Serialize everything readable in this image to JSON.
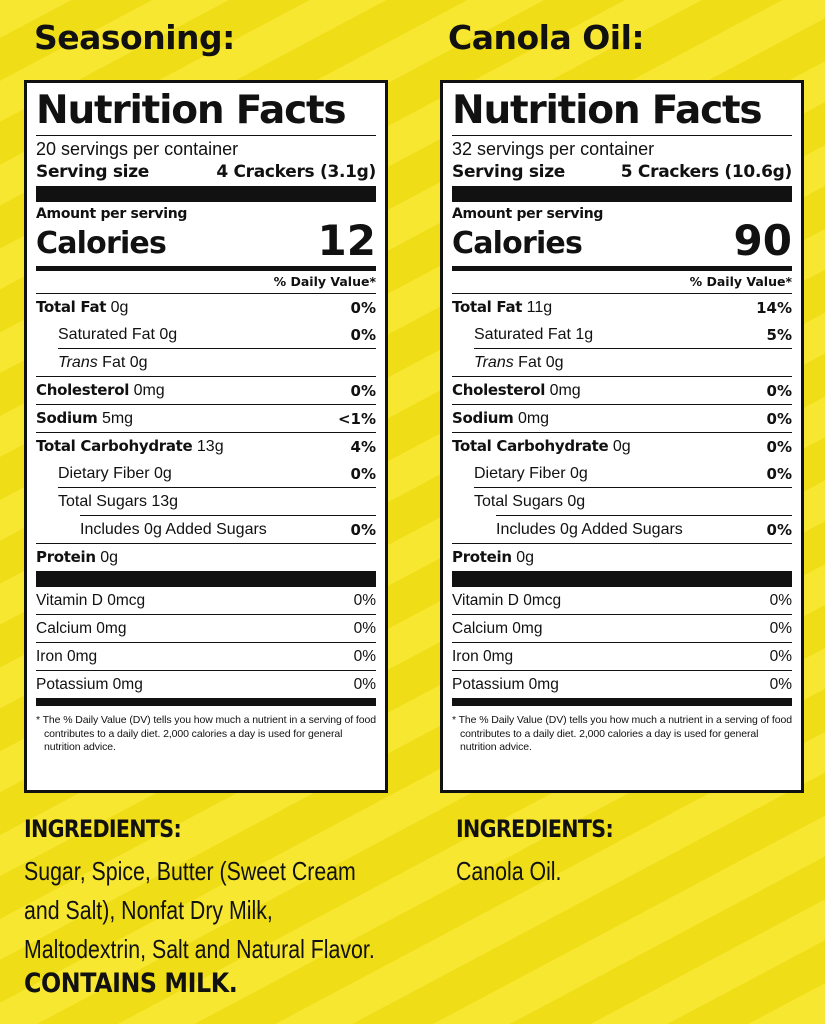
{
  "colors": {
    "background": "#f7e418",
    "panel": "#ffffff",
    "ink": "#111111"
  },
  "labels": [
    {
      "heading": "Seasoning:",
      "nutrition_title": "Nutrition Facts",
      "servings_per_container": "20 servings per container",
      "serving_size_label": "Serving size",
      "serving_size_value": "4 Crackers (3.1g)",
      "amount_per_serving": "Amount per serving",
      "calories_label": "Calories",
      "calories_value": "12",
      "dv_header": "% Daily Value*",
      "total_fat": {
        "label": "Total Fat",
        "amount": "0g",
        "dv": "0%"
      },
      "saturated_fat": {
        "label": "Saturated Fat 0g",
        "dv": "0%"
      },
      "trans_fat": {
        "label_italic": "Trans",
        "label_rest": " Fat 0g"
      },
      "cholesterol": {
        "label": "Cholesterol",
        "amount": "0mg",
        "dv": "0%"
      },
      "sodium": {
        "label": "Sodium",
        "amount": "5mg",
        "dv": "<1%"
      },
      "total_carbohydrate": {
        "label": "Total Carbohydrate",
        "amount": "13g",
        "dv": "4%"
      },
      "dietary_fiber": {
        "label": "Dietary Fiber 0g",
        "dv": "0%"
      },
      "total_sugars": {
        "label": "Total Sugars 13g"
      },
      "added_sugars": {
        "label": "Includes 0g Added Sugars",
        "dv": "0%"
      },
      "protein": {
        "label": "Protein",
        "amount": "0g"
      },
      "vitamin_d": {
        "label": "Vitamin D 0mcg",
        "dv": "0%"
      },
      "calcium": {
        "label": "Calcium 0mg",
        "dv": "0%"
      },
      "iron": {
        "label": "Iron 0mg",
        "dv": "0%"
      },
      "potassium": {
        "label": "Potassium 0mg",
        "dv": "0%"
      },
      "footnote": "* The % Daily Value (DV) tells you how much a nutrient in a serving of food contributes to a daily diet. 2,000 calories a day is used for general nutrition advice.",
      "ingredients_title": "INGREDIENTS:",
      "ingredients_text": "Sugar, Spice, Butter (Sweet Cream and Salt), Nonfat Dry Milk, Maltodextrin, Salt and Natural Flavor.",
      "contains": "CONTAINS MILK."
    },
    {
      "heading": "Canola Oil:",
      "nutrition_title": "Nutrition Facts",
      "servings_per_container": "32 servings per container",
      "serving_size_label": "Serving size",
      "serving_size_value": "5 Crackers (10.6g)",
      "amount_per_serving": "Amount per serving",
      "calories_label": "Calories",
      "calories_value": "90",
      "dv_header": "% Daily Value*",
      "total_fat": {
        "label": "Total Fat",
        "amount": "11g",
        "dv": "14%"
      },
      "saturated_fat": {
        "label": "Saturated Fat 1g",
        "dv": "5%"
      },
      "trans_fat": {
        "label_italic": "Trans",
        "label_rest": " Fat 0g"
      },
      "cholesterol": {
        "label": "Cholesterol",
        "amount": "0mg",
        "dv": "0%"
      },
      "sodium": {
        "label": "Sodium",
        "amount": "0mg",
        "dv": "0%"
      },
      "total_carbohydrate": {
        "label": "Total Carbohydrate",
        "amount": "0g",
        "dv": "0%"
      },
      "dietary_fiber": {
        "label": "Dietary Fiber 0g",
        "dv": "0%"
      },
      "total_sugars": {
        "label": "Total Sugars 0g"
      },
      "added_sugars": {
        "label": "Includes 0g Added Sugars",
        "dv": "0%"
      },
      "protein": {
        "label": "Protein",
        "amount": "0g"
      },
      "vitamin_d": {
        "label": "Vitamin D 0mcg",
        "dv": "0%"
      },
      "calcium": {
        "label": "Calcium 0mg",
        "dv": "0%"
      },
      "iron": {
        "label": "Iron 0mg",
        "dv": "0%"
      },
      "potassium": {
        "label": "Potassium 0mg",
        "dv": "0%"
      },
      "footnote": "* The % Daily Value (DV) tells you how much a nutrient in a serving of food contributes to a daily diet. 2,000 calories a day is used for general nutrition advice.",
      "ingredients_title": "INGREDIENTS:",
      "ingredients_text": "Canola Oil."
    }
  ]
}
